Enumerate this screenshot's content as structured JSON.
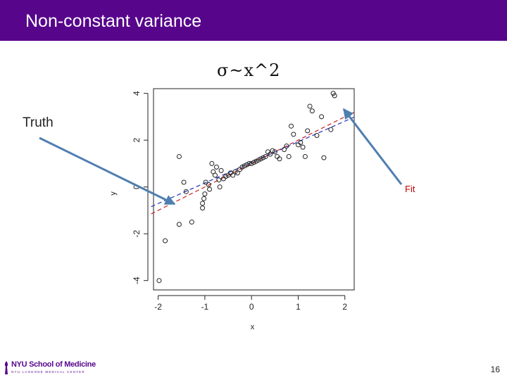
{
  "slide": {
    "title": "Non-constant variance",
    "formula": "σ~x^2",
    "truth_label": "Truth",
    "fit_label": "Fit",
    "page_number": "16"
  },
  "logo": {
    "name": "NYU School of Medicine",
    "subtitle": "NYU LANGONE MEDICAL CENTER"
  },
  "colors": {
    "header": "#57068c",
    "truth_line": "#cc2222",
    "fit_line": "#2233bb",
    "arrow": "#4f7fb0",
    "fit_text": "#c00000"
  },
  "chart_data": {
    "type": "scatter",
    "xlabel": "x",
    "ylabel": "y",
    "xlim": [
      -2.1,
      2.2
    ],
    "ylim": [
      -4.4,
      4.2
    ],
    "xticks": [
      -2,
      -1,
      0,
      1,
      2
    ],
    "yticks": [
      -4,
      -2,
      0,
      2,
      4
    ],
    "grid": false,
    "points": [
      [
        -1.98,
        -4.0
      ],
      [
        -1.85,
        -2.3
      ],
      [
        -1.55,
        -1.6
      ],
      [
        -1.55,
        1.3
      ],
      [
        -1.45,
        0.2
      ],
      [
        -1.4,
        -0.2
      ],
      [
        -1.28,
        -1.5
      ],
      [
        -1.05,
        -0.9
      ],
      [
        -1.05,
        -0.7
      ],
      [
        -1.02,
        -0.5
      ],
      [
        -1.0,
        -0.3
      ],
      [
        -0.98,
        0.2
      ],
      [
        -0.92,
        0.1
      ],
      [
        -0.9,
        -0.1
      ],
      [
        -0.85,
        1.0
      ],
      [
        -0.82,
        0.65
      ],
      [
        -0.78,
        0.5
      ],
      [
        -0.75,
        0.85
      ],
      [
        -0.7,
        0.3
      ],
      [
        -0.68,
        0.0
      ],
      [
        -0.65,
        0.7
      ],
      [
        -0.6,
        0.35
      ],
      [
        -0.55,
        0.45
      ],
      [
        -0.5,
        0.5
      ],
      [
        -0.45,
        0.6
      ],
      [
        -0.4,
        0.5
      ],
      [
        -0.35,
        0.65
      ],
      [
        -0.3,
        0.6
      ],
      [
        -0.25,
        0.75
      ],
      [
        -0.2,
        0.85
      ],
      [
        -0.15,
        0.9
      ],
      [
        -0.1,
        0.95
      ],
      [
        -0.05,
        1.0
      ],
      [
        0.0,
        1.0
      ],
      [
        0.05,
        1.05
      ],
      [
        0.1,
        1.1
      ],
      [
        0.15,
        1.15
      ],
      [
        0.2,
        1.2
      ],
      [
        0.25,
        1.25
      ],
      [
        0.3,
        1.3
      ],
      [
        0.35,
        1.5
      ],
      [
        0.4,
        1.4
      ],
      [
        0.45,
        1.55
      ],
      [
        0.5,
        1.5
      ],
      [
        0.55,
        1.3
      ],
      [
        0.6,
        1.2
      ],
      [
        0.7,
        1.6
      ],
      [
        0.75,
        1.75
      ],
      [
        0.8,
        1.3
      ],
      [
        0.85,
        2.6
      ],
      [
        0.9,
        2.25
      ],
      [
        1.0,
        1.8
      ],
      [
        1.05,
        1.9
      ],
      [
        1.1,
        1.7
      ],
      [
        1.15,
        1.3
      ],
      [
        1.2,
        2.4
      ],
      [
        1.25,
        3.45
      ],
      [
        1.3,
        3.25
      ],
      [
        1.4,
        2.2
      ],
      [
        1.5,
        3.0
      ],
      [
        1.55,
        1.25
      ],
      [
        1.7,
        2.45
      ],
      [
        1.75,
        4.0
      ],
      [
        1.78,
        3.9
      ]
    ],
    "series": [
      {
        "name": "Truth",
        "intercept": 1.0,
        "slope": 1.0
      },
      {
        "name": "Fit",
        "intercept": 1.05,
        "slope": 0.88
      }
    ]
  }
}
